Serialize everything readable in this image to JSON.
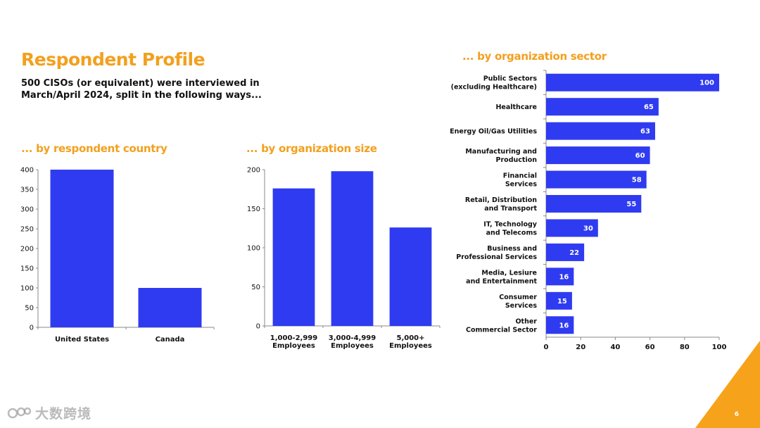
{
  "page": {
    "title": "Respondent Profile",
    "subtitle": "500 CISOs (or equivalent) were interviewed in March/April 2024, split in the following ways...",
    "page_number": "6",
    "watermark": "大数跨境",
    "accent_color": "#F2A01E",
    "bar_color": "#2F3BF0"
  },
  "chart_data": [
    {
      "id": "country",
      "type": "bar",
      "title": "... by respondent country",
      "categories": [
        "United States",
        "Canada"
      ],
      "values": [
        400,
        100
      ],
      "yticks": [
        "0",
        "50",
        "100",
        "150",
        "200",
        "250",
        "300",
        "350",
        "400"
      ],
      "ylim": [
        0,
        400
      ],
      "xlabel": "",
      "ylabel": ""
    },
    {
      "id": "size",
      "type": "bar",
      "title": "... by organization size",
      "categories": [
        [
          "1,000-2,999",
          "Employees"
        ],
        [
          "3,000-4,999",
          "Employees"
        ],
        [
          "5,000+",
          "Employees"
        ]
      ],
      "values": [
        176,
        198,
        126
      ],
      "yticks": [
        "0",
        "50",
        "100",
        "150",
        "200"
      ],
      "ylim": [
        0,
        200
      ],
      "xlabel": "",
      "ylabel": ""
    },
    {
      "id": "sector",
      "type": "bar",
      "orientation": "horizontal",
      "title": "... by organization sector",
      "categories": [
        [
          "Public Sectors",
          "(excluding Healthcare)"
        ],
        [
          "Healthcare"
        ],
        [
          "Energy Oil/Gas Utilities"
        ],
        [
          "Manufacturing and",
          "Production"
        ],
        [
          "Financial",
          "Services"
        ],
        [
          "Retail, Distribution",
          "and Transport"
        ],
        [
          "IT, Technology",
          "and Telecoms"
        ],
        [
          "Business and",
          "Professional Services"
        ],
        [
          "Media, Lesiure",
          "and Entertainment"
        ],
        [
          "Consumer",
          "Services"
        ],
        [
          "Other",
          "Commercial Sector"
        ]
      ],
      "values": [
        100,
        65,
        63,
        60,
        58,
        55,
        30,
        22,
        16,
        15,
        16
      ],
      "data_labels": [
        "100",
        "65",
        "63",
        "60",
        "58",
        "55",
        "30",
        "22",
        "16",
        "15",
        "16"
      ],
      "xticks": [
        "0",
        "20",
        "40",
        "60",
        "80",
        "100"
      ],
      "xlim": [
        0,
        100
      ],
      "xlabel": "",
      "ylabel": ""
    }
  ]
}
